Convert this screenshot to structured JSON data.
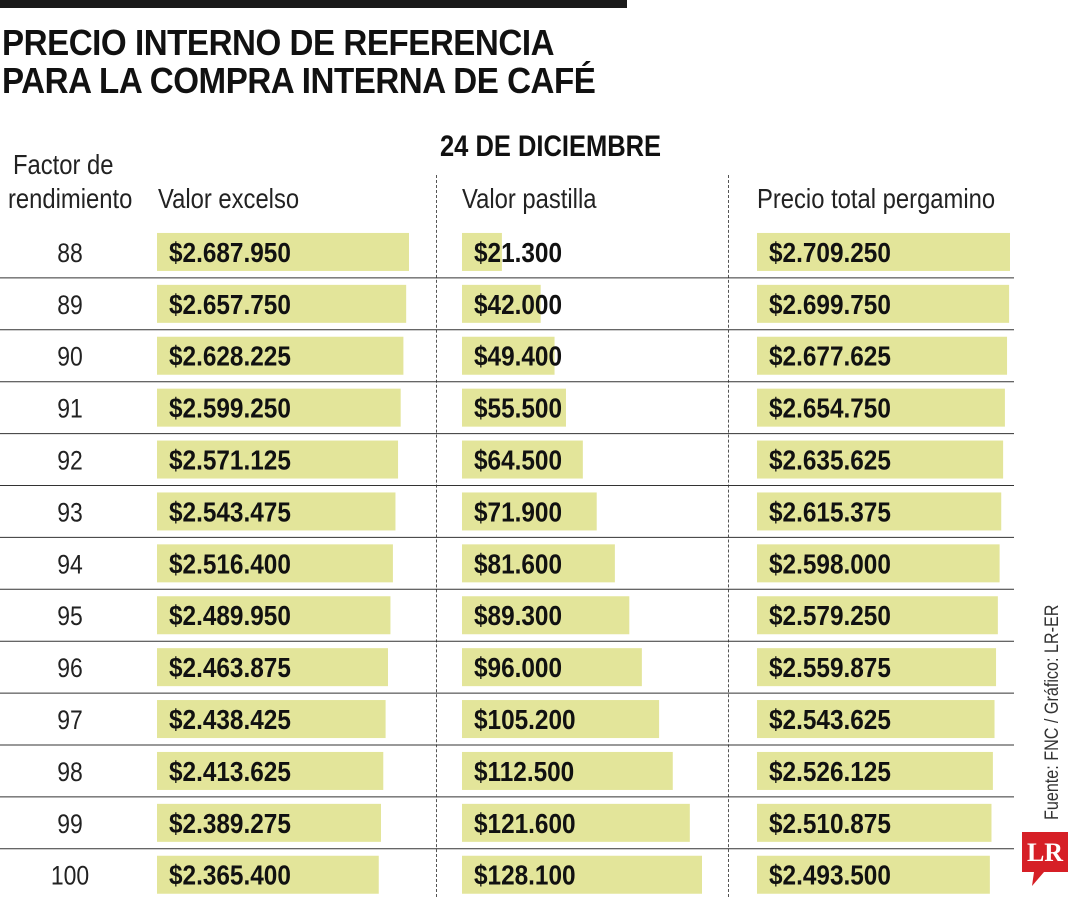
{
  "title_lines": [
    "PRECIO INTERNO DE REFERENCIA",
    "PARA LA COMPRA INTERNA DE CAFÉ"
  ],
  "date": "24 DE DICIEMBRE",
  "headers": {
    "factor_lines": [
      "Factor de",
      "rendimiento"
    ],
    "excelso": "Valor excelso",
    "pastilla": "Valor pastilla",
    "pergamino": "Precio total pergamino"
  },
  "source": "Fuente: FNC / Gráfico: LR-ER",
  "logo_text": "LR",
  "colors": {
    "bar": "#e3e59a",
    "text": "#1a1a1a",
    "logo": "#d61f26"
  },
  "chart_data": {
    "type": "table",
    "columns": [
      "Factor de rendimiento",
      "Valor excelso",
      "Valor pastilla",
      "Precio total pergamino"
    ],
    "rows": [
      {
        "factor": "88",
        "excelso": "$2.687.950",
        "pastilla": "$21.300",
        "pergamino": "$2.709.250",
        "excelso_value": 2687950,
        "pastilla_value": 21300,
        "pergamino_value": 2709250
      },
      {
        "factor": "89",
        "excelso": "$2.657.750",
        "pastilla": "$42.000",
        "pergamino": "$2.699.750",
        "excelso_value": 2657750,
        "pastilla_value": 42000,
        "pergamino_value": 2699750
      },
      {
        "factor": "90",
        "excelso": "$2.628.225",
        "pastilla": "$49.400",
        "pergamino": "$2.677.625",
        "excelso_value": 2628225,
        "pastilla_value": 49400,
        "pergamino_value": 2677625
      },
      {
        "factor": "91",
        "excelso": "$2.599.250",
        "pastilla": "$55.500",
        "pergamino": "$2.654.750",
        "excelso_value": 2599250,
        "pastilla_value": 55500,
        "pergamino_value": 2654750
      },
      {
        "factor": "92",
        "excelso": "$2.571.125",
        "pastilla": "$64.500",
        "pergamino": "$2.635.625",
        "excelso_value": 2571125,
        "pastilla_value": 64500,
        "pergamino_value": 2635625
      },
      {
        "factor": "93",
        "excelso": "$2.543.475",
        "pastilla": "$71.900",
        "pergamino": "$2.615.375",
        "excelso_value": 2543475,
        "pastilla_value": 71900,
        "pergamino_value": 2615375
      },
      {
        "factor": "94",
        "excelso": "$2.516.400",
        "pastilla": "$81.600",
        "pergamino": "$2.598.000",
        "excelso_value": 2516400,
        "pastilla_value": 81600,
        "pergamino_value": 2598000
      },
      {
        "factor": "95",
        "excelso": "$2.489.950",
        "pastilla": "$89.300",
        "pergamino": "$2.579.250",
        "excelso_value": 2489950,
        "pastilla_value": 89300,
        "pergamino_value": 2579250
      },
      {
        "factor": "96",
        "excelso": "$2.463.875",
        "pastilla": "$96.000",
        "pergamino": "$2.559.875",
        "excelso_value": 2463875,
        "pastilla_value": 96000,
        "pergamino_value": 2559875
      },
      {
        "factor": "97",
        "excelso": "$2.438.425",
        "pastilla": "$105.200",
        "pergamino": "$2.543.625",
        "excelso_value": 2438425,
        "pastilla_value": 105200,
        "pergamino_value": 2543625
      },
      {
        "factor": "98",
        "excelso": "$2.413.625",
        "pastilla": "$112.500",
        "pergamino": "$2.526.125",
        "excelso_value": 2413625,
        "pastilla_value": 112500,
        "pergamino_value": 2526125
      },
      {
        "factor": "99",
        "excelso": "$2.389.275",
        "pastilla": "$121.600",
        "pergamino": "$2.510.875",
        "excelso_value": 2389275,
        "pastilla_value": 121600,
        "pergamino_value": 2510875
      },
      {
        "factor": "100",
        "excelso": "$2.365.400",
        "pastilla": "$128.100",
        "pergamino": "$2.493.500",
        "excelso_value": 2365400,
        "pastilla_value": 128100,
        "pergamino_value": 2493500
      }
    ]
  }
}
